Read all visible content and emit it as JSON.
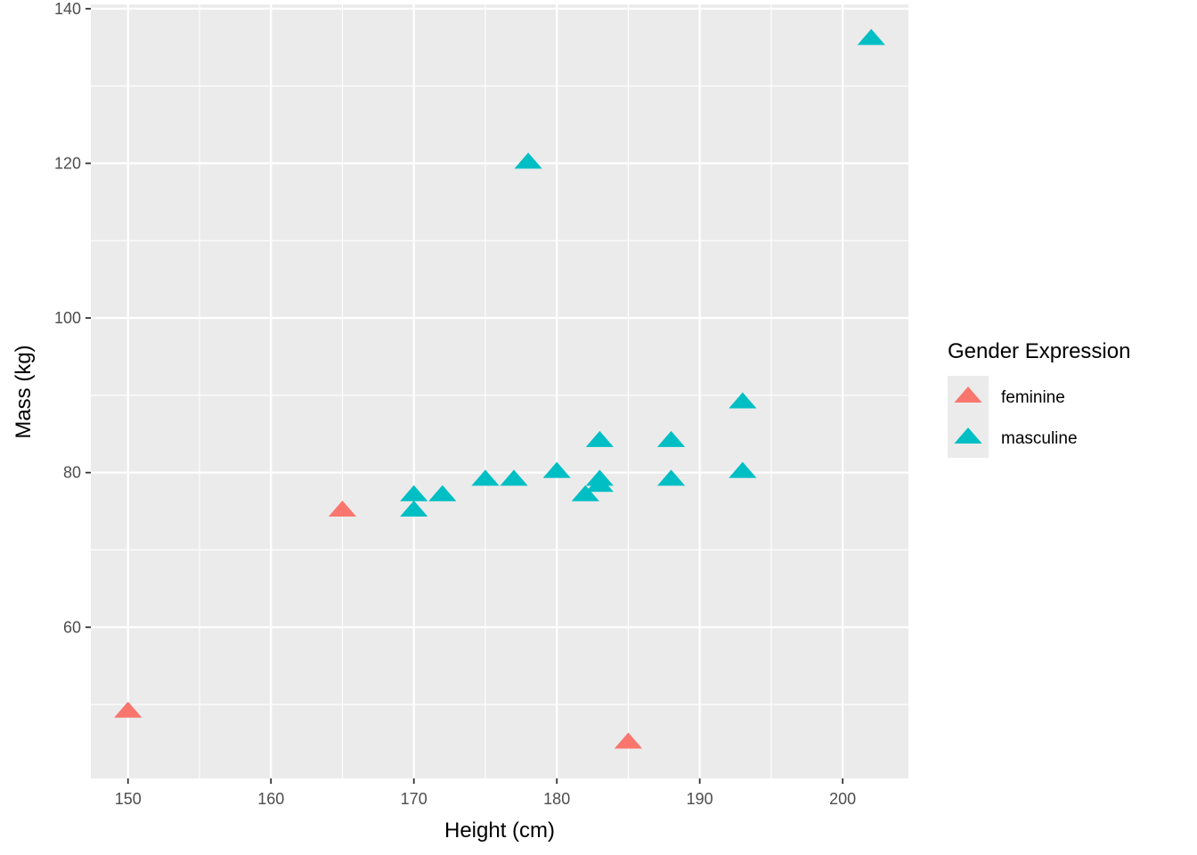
{
  "chart_data": {
    "type": "scatter",
    "title": "",
    "xlabel": "Height (cm)",
    "ylabel": "Mass (kg)",
    "xlim": [
      147.4,
      204.6
    ],
    "ylim": [
      40.45,
      140.55
    ],
    "x_ticks": [
      150,
      160,
      170,
      180,
      190,
      200
    ],
    "y_ticks": [
      60,
      80,
      100,
      120,
      140
    ],
    "grid": true,
    "marker": "triangle",
    "legend": {
      "title": "Gender Expression",
      "position": "right"
    },
    "series": [
      {
        "name": "feminine",
        "color": "#F8766D",
        "points": [
          {
            "x": 150,
            "y": 49
          },
          {
            "x": 165,
            "y": 75
          },
          {
            "x": 185,
            "y": 45
          }
        ]
      },
      {
        "name": "masculine",
        "color": "#00BFC4",
        "points": [
          {
            "x": 170,
            "y": 77
          },
          {
            "x": 170,
            "y": 75
          },
          {
            "x": 172,
            "y": 77
          },
          {
            "x": 175,
            "y": 79
          },
          {
            "x": 177,
            "y": 79
          },
          {
            "x": 178,
            "y": 120
          },
          {
            "x": 180,
            "y": 80
          },
          {
            "x": 182,
            "y": 77
          },
          {
            "x": 183,
            "y": 84
          },
          {
            "x": 183,
            "y": 79
          },
          {
            "x": 183,
            "y": 78.2
          },
          {
            "x": 188,
            "y": 84
          },
          {
            "x": 188,
            "y": 79
          },
          {
            "x": 193,
            "y": 89
          },
          {
            "x": 193,
            "y": 80
          },
          {
            "x": 202,
            "y": 136
          }
        ]
      }
    ]
  }
}
